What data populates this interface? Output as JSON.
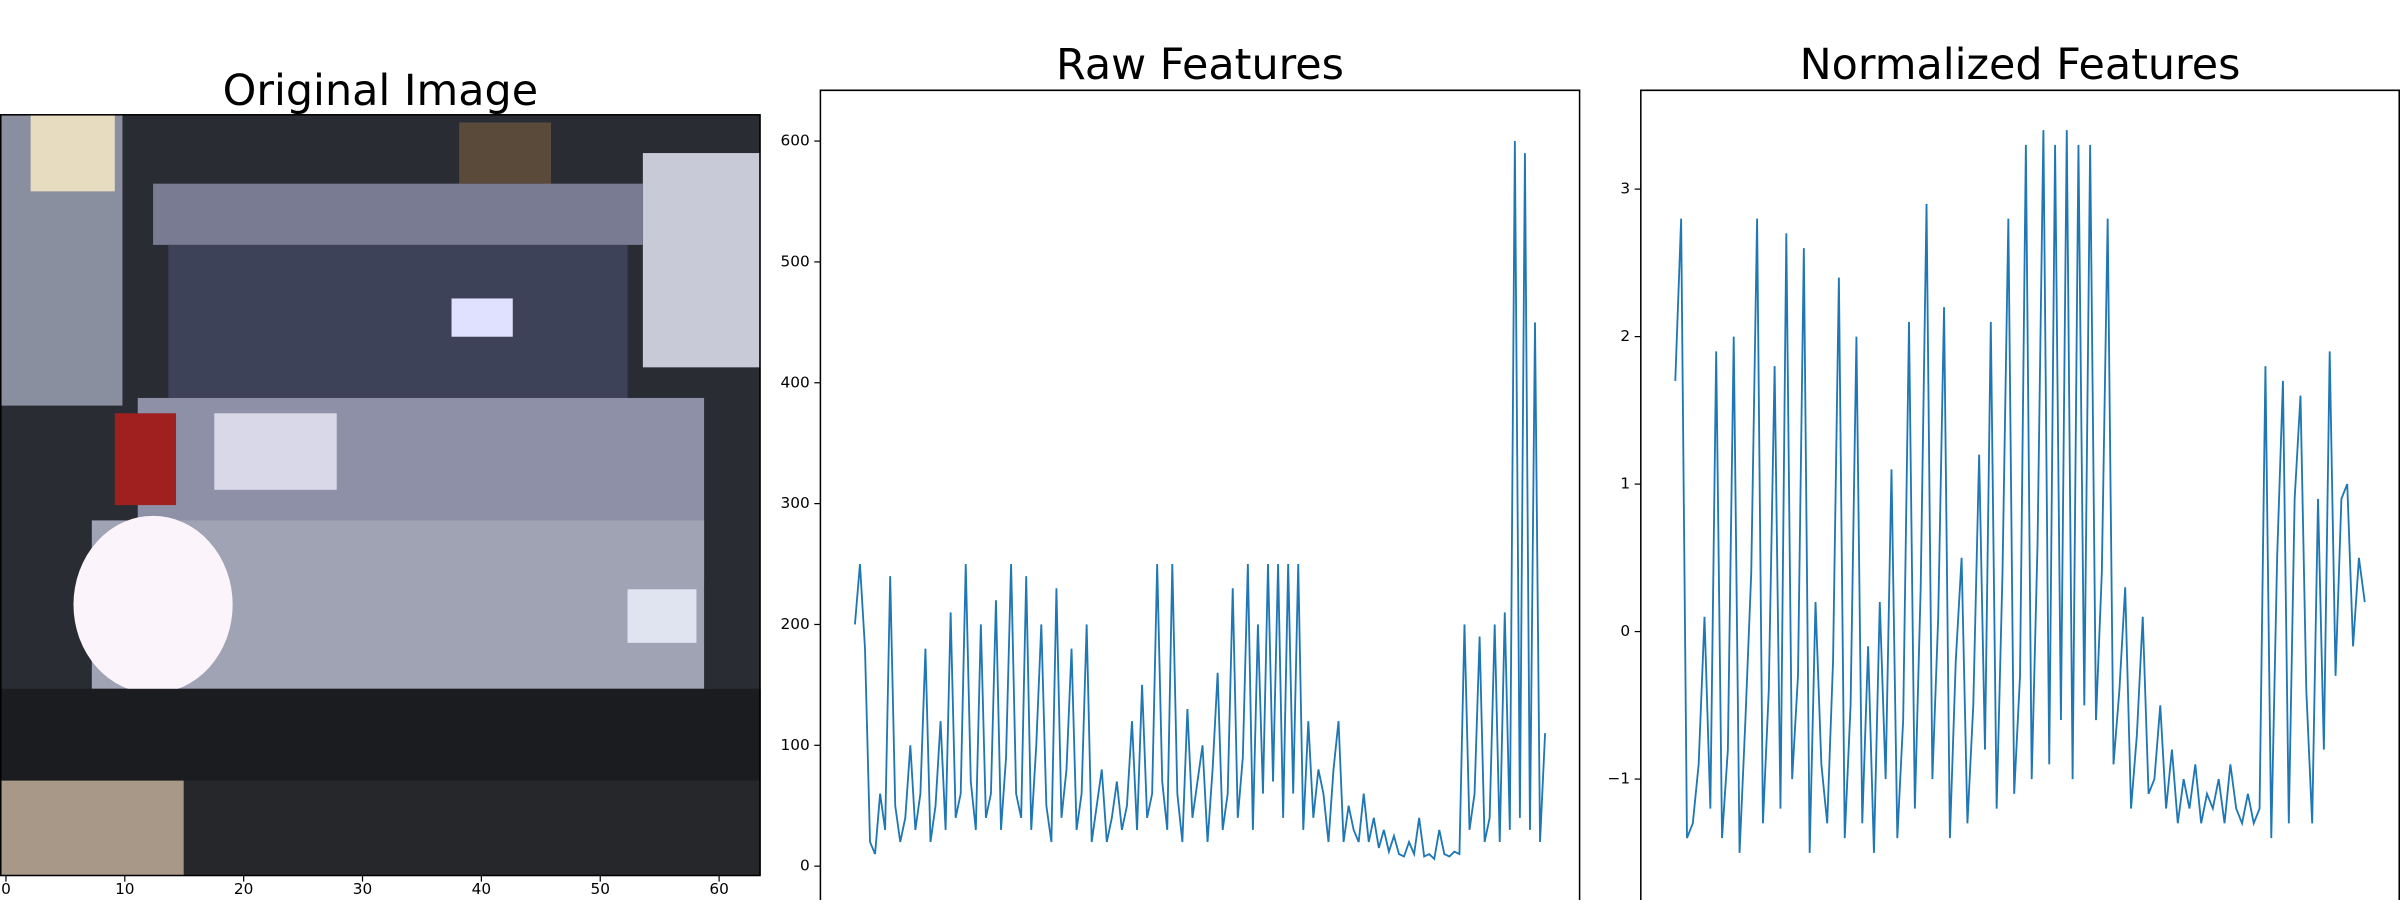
{
  "chart_data": [
    {
      "type": "image",
      "title": "Original Image",
      "xlim": [
        -0.5,
        63.5
      ],
      "xticks": [
        0,
        10,
        20,
        30,
        40,
        50,
        60
      ]
    },
    {
      "type": "line",
      "title": "Raw Features",
      "color": "#1f77b4",
      "ylim": [
        -28,
        642
      ],
      "yticks": [
        0,
        100,
        200,
        300,
        400,
        500,
        600
      ],
      "values": [
        200,
        250,
        180,
        20,
        10,
        60,
        30,
        240,
        50,
        20,
        40,
        100,
        30,
        60,
        180,
        20,
        50,
        120,
        30,
        210,
        40,
        60,
        250,
        70,
        30,
        200,
        40,
        60,
        220,
        30,
        90,
        250,
        60,
        40,
        240,
        30,
        100,
        200,
        50,
        20,
        230,
        40,
        80,
        180,
        30,
        60,
        200,
        20,
        50,
        80,
        20,
        40,
        70,
        30,
        50,
        120,
        30,
        150,
        40,
        60,
        250,
        70,
        30,
        250,
        60,
        20,
        130,
        40,
        70,
        100,
        20,
        80,
        160,
        30,
        60,
        230,
        40,
        90,
        250,
        30,
        200,
        60,
        250,
        70,
        250,
        40,
        250,
        60,
        250,
        30,
        120,
        40,
        80,
        60,
        20,
        80,
        120,
        20,
        50,
        30,
        20,
        60,
        20,
        40,
        15,
        30,
        12,
        25,
        10,
        8,
        20,
        10,
        40,
        8,
        10,
        6,
        30,
        10,
        8,
        12,
        10,
        200,
        30,
        60,
        190,
        20,
        40,
        200,
        20,
        210,
        30,
        600,
        40,
        590,
        30,
        450,
        20,
        110
      ]
    },
    {
      "type": "line",
      "title": "Normalized Features",
      "color": "#1f77b4",
      "ylim": [
        -1.82,
        3.67
      ],
      "yticks": [
        {
          "value": -1,
          "label": "−1"
        },
        0,
        1,
        2,
        3
      ],
      "values": [
        1.7,
        2.8,
        -1.4,
        -1.3,
        -0.9,
        0.1,
        -1.2,
        1.9,
        -1.4,
        -0.8,
        2.0,
        -1.5,
        -0.6,
        0.4,
        2.8,
        -1.3,
        -0.4,
        1.8,
        -1.2,
        2.7,
        -1.0,
        -0.3,
        2.6,
        -1.5,
        0.2,
        -0.9,
        -1.3,
        -0.2,
        2.4,
        -1.4,
        -0.5,
        2.0,
        -1.3,
        -0.1,
        -1.5,
        0.2,
        -1.0,
        1.1,
        -1.4,
        -0.6,
        2.1,
        -1.2,
        0.3,
        2.9,
        -1.0,
        0.1,
        2.2,
        -1.4,
        -0.2,
        0.5,
        -1.3,
        -0.5,
        1.2,
        -0.8,
        2.1,
        -1.2,
        0.4,
        2.8,
        -1.1,
        -0.3,
        3.3,
        -1.0,
        0.6,
        3.4,
        -0.9,
        3.3,
        -0.6,
        3.4,
        -1.0,
        3.3,
        -0.5,
        3.3,
        -0.6,
        0.4,
        2.8,
        -0.9,
        -0.4,
        0.3,
        -1.2,
        -0.7,
        0.1,
        -1.1,
        -1.0,
        -0.5,
        -1.2,
        -0.8,
        -1.3,
        -1.0,
        -1.2,
        -0.9,
        -1.3,
        -1.1,
        -1.2,
        -1.0,
        -1.3,
        -0.9,
        -1.2,
        -1.3,
        -1.1,
        -1.3,
        -1.2,
        1.8,
        -1.4,
        0.5,
        1.7,
        -1.3,
        0.9,
        1.6,
        -0.4,
        -1.3,
        0.9,
        -0.8,
        1.9,
        -0.3,
        0.9,
        1.0,
        -0.1,
        0.5,
        0.2
      ]
    }
  ]
}
